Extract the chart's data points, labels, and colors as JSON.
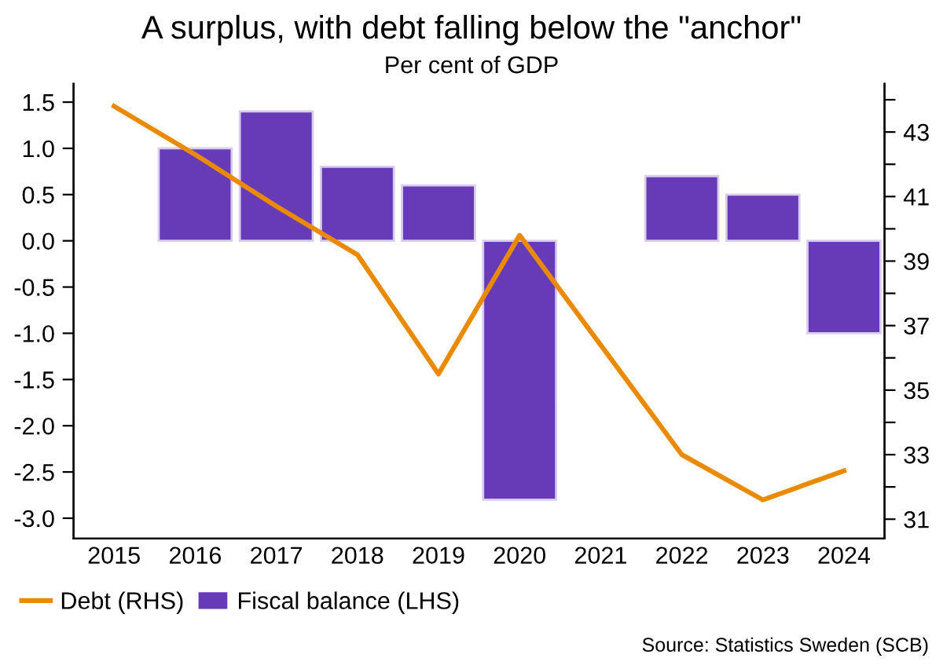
{
  "chart_data": {
    "type": "bar",
    "title": "A surplus, with debt falling below the \"anchor\"",
    "subtitle": "Per cent of GDP",
    "categories": [
      "2015",
      "2016",
      "2017",
      "2018",
      "2019",
      "2020",
      "2021",
      "2022",
      "2023",
      "2024"
    ],
    "series": [
      {
        "name": "Debt (RHS)",
        "type": "line",
        "axis": "y2",
        "color": "#ea8a00",
        "values": [
          43.8,
          42.3,
          40.7,
          39.2,
          35.5,
          39.8,
          36.4,
          33.0,
          31.6,
          32.5
        ]
      },
      {
        "name": "Fiscal balance (LHS)",
        "axis": "y",
        "color": "#673ab7",
        "values": [
          null,
          1.0,
          1.4,
          0.8,
          0.6,
          -2.8,
          null,
          0.7,
          0.5,
          -1.0
        ]
      }
    ],
    "ylim": [
      -3.22,
      1.7
    ],
    "yticks": [
      {
        "value": -3.0,
        "label": "-3.0"
      },
      {
        "value": -2.5,
        "label": "-2.5"
      },
      {
        "value": -2.0,
        "label": "-2.0"
      },
      {
        "value": -1.5,
        "label": "-1.5"
      },
      {
        "value": -1.0,
        "label": "-1.0"
      },
      {
        "value": -0.5,
        "label": "-0.5"
      },
      {
        "value": 0.0,
        "label": "0.0"
      },
      {
        "value": 0.5,
        "label": "0.5"
      },
      {
        "value": 1.0,
        "label": "1.0"
      },
      {
        "value": 1.5,
        "label": "1.5"
      }
    ],
    "y2lim": [
      30.4,
      44.5
    ],
    "y2ticks": [
      31,
      {
        "value": 32,
        "label": null
      },
      33,
      {
        "value": 34,
        "label": null
      },
      35,
      {
        "value": 36,
        "label": null
      },
      37,
      {
        "value": 38,
        "label": null
      },
      39,
      {
        "value": 40,
        "label": null
      },
      41,
      {
        "value": 42,
        "label": null
      },
      43,
      {
        "value": 44,
        "label": null
      }
    ],
    "legend": "bottom left",
    "grid": false,
    "marker": "none",
    "line_style": "solid",
    "annotations": [
      "Source: Statistics Sweden (SCB)"
    ]
  }
}
